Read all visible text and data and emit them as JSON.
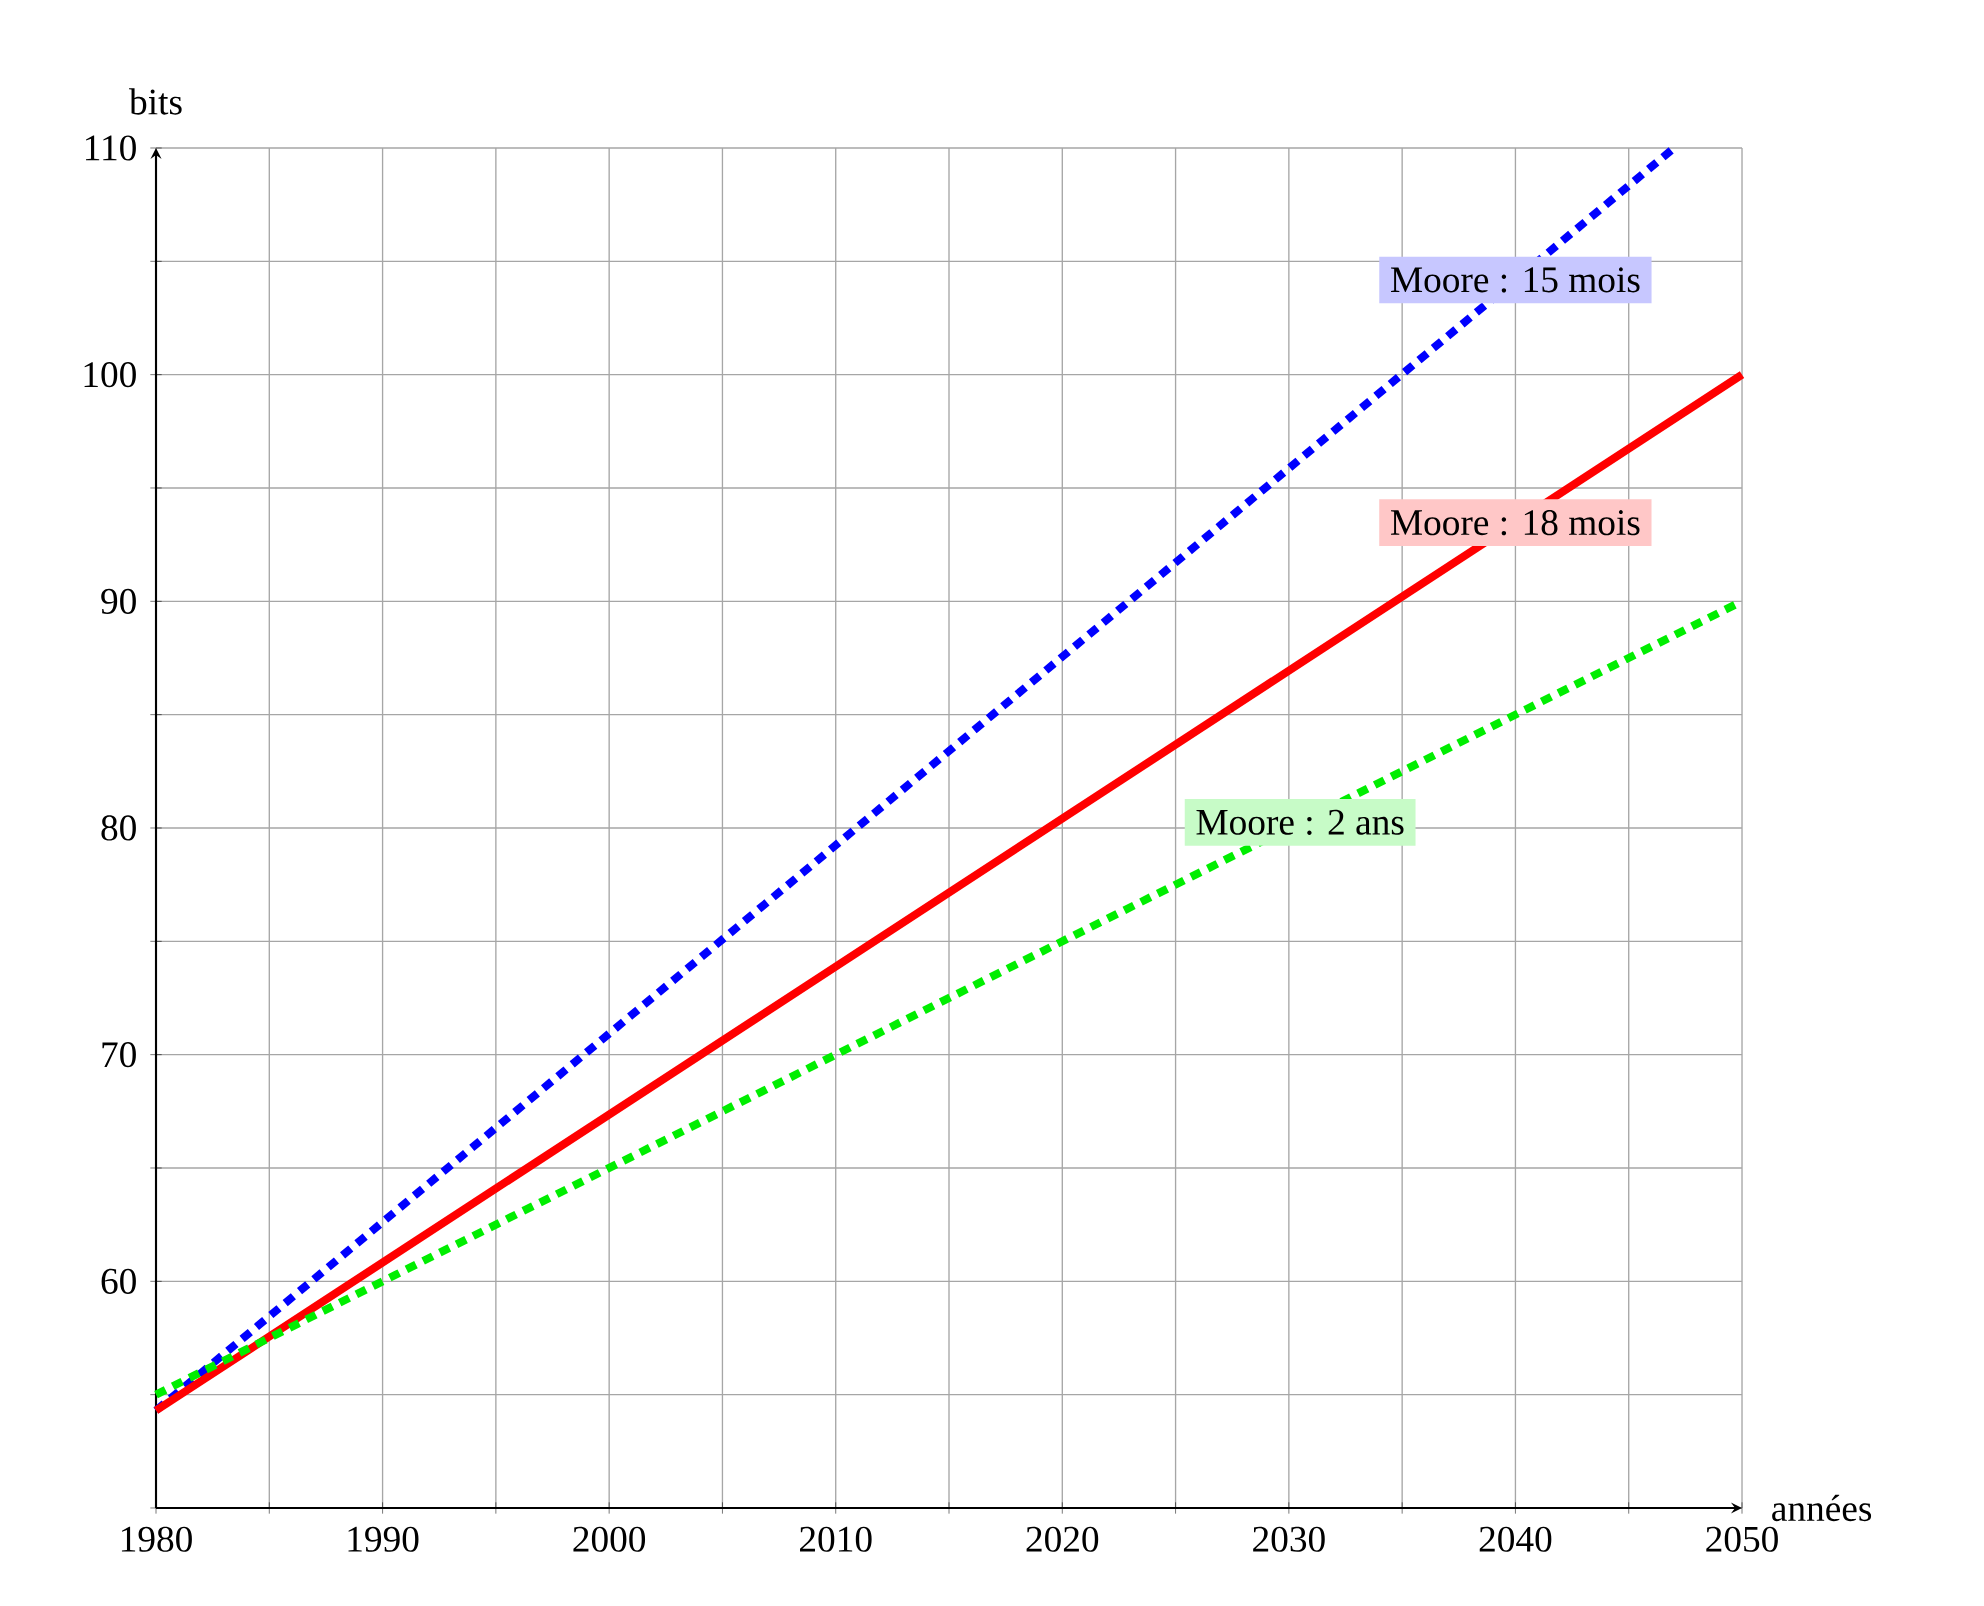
{
  "chart_data": {
    "type": "line",
    "xlabel": "années",
    "ylabel": "bits",
    "xlim": [
      1980,
      2050
    ],
    "ylim": [
      50,
      110
    ],
    "xticks": [
      1980,
      {
        "value": 1985,
        "label": null
      },
      1990,
      {
        "value": 1995,
        "label": null
      },
      2000,
      {
        "value": 2005,
        "label": null
      },
      2010,
      {
        "value": 2015,
        "label": null
      },
      2020,
      {
        "value": 2025,
        "label": null
      },
      2030,
      {
        "value": 2035,
        "label": null
      },
      2040,
      {
        "value": 2045,
        "label": null
      },
      2050
    ],
    "yticks": [
      {
        "value": 50,
        "label": null
      },
      {
        "value": 55,
        "label": null
      },
      60,
      {
        "value": 65,
        "label": null
      },
      70,
      {
        "value": 75,
        "label": null
      },
      80,
      {
        "value": 85,
        "label": null
      },
      90,
      {
        "value": 95,
        "label": null
      },
      100,
      {
        "value": 105,
        "label": null
      },
      110
    ],
    "grid": true,
    "marker": "none",
    "series": [
      {
        "name": "Moore : 15 mois",
        "color": "#0000ff",
        "line_style": "dashed",
        "x": [
          1980,
          2047
        ],
        "values": [
          54.3,
          110
        ]
      },
      {
        "name": "Moore : 18 mois",
        "color": "#ff0000",
        "line_style": "solid",
        "x": [
          1980,
          2050
        ],
        "values": [
          54.3,
          100
        ]
      },
      {
        "name": "Moore : 2 ans",
        "color": "#00ee00",
        "line_style": "dashed",
        "x": [
          1980,
          2050
        ],
        "values": [
          55,
          90
        ]
      }
    ]
  }
}
